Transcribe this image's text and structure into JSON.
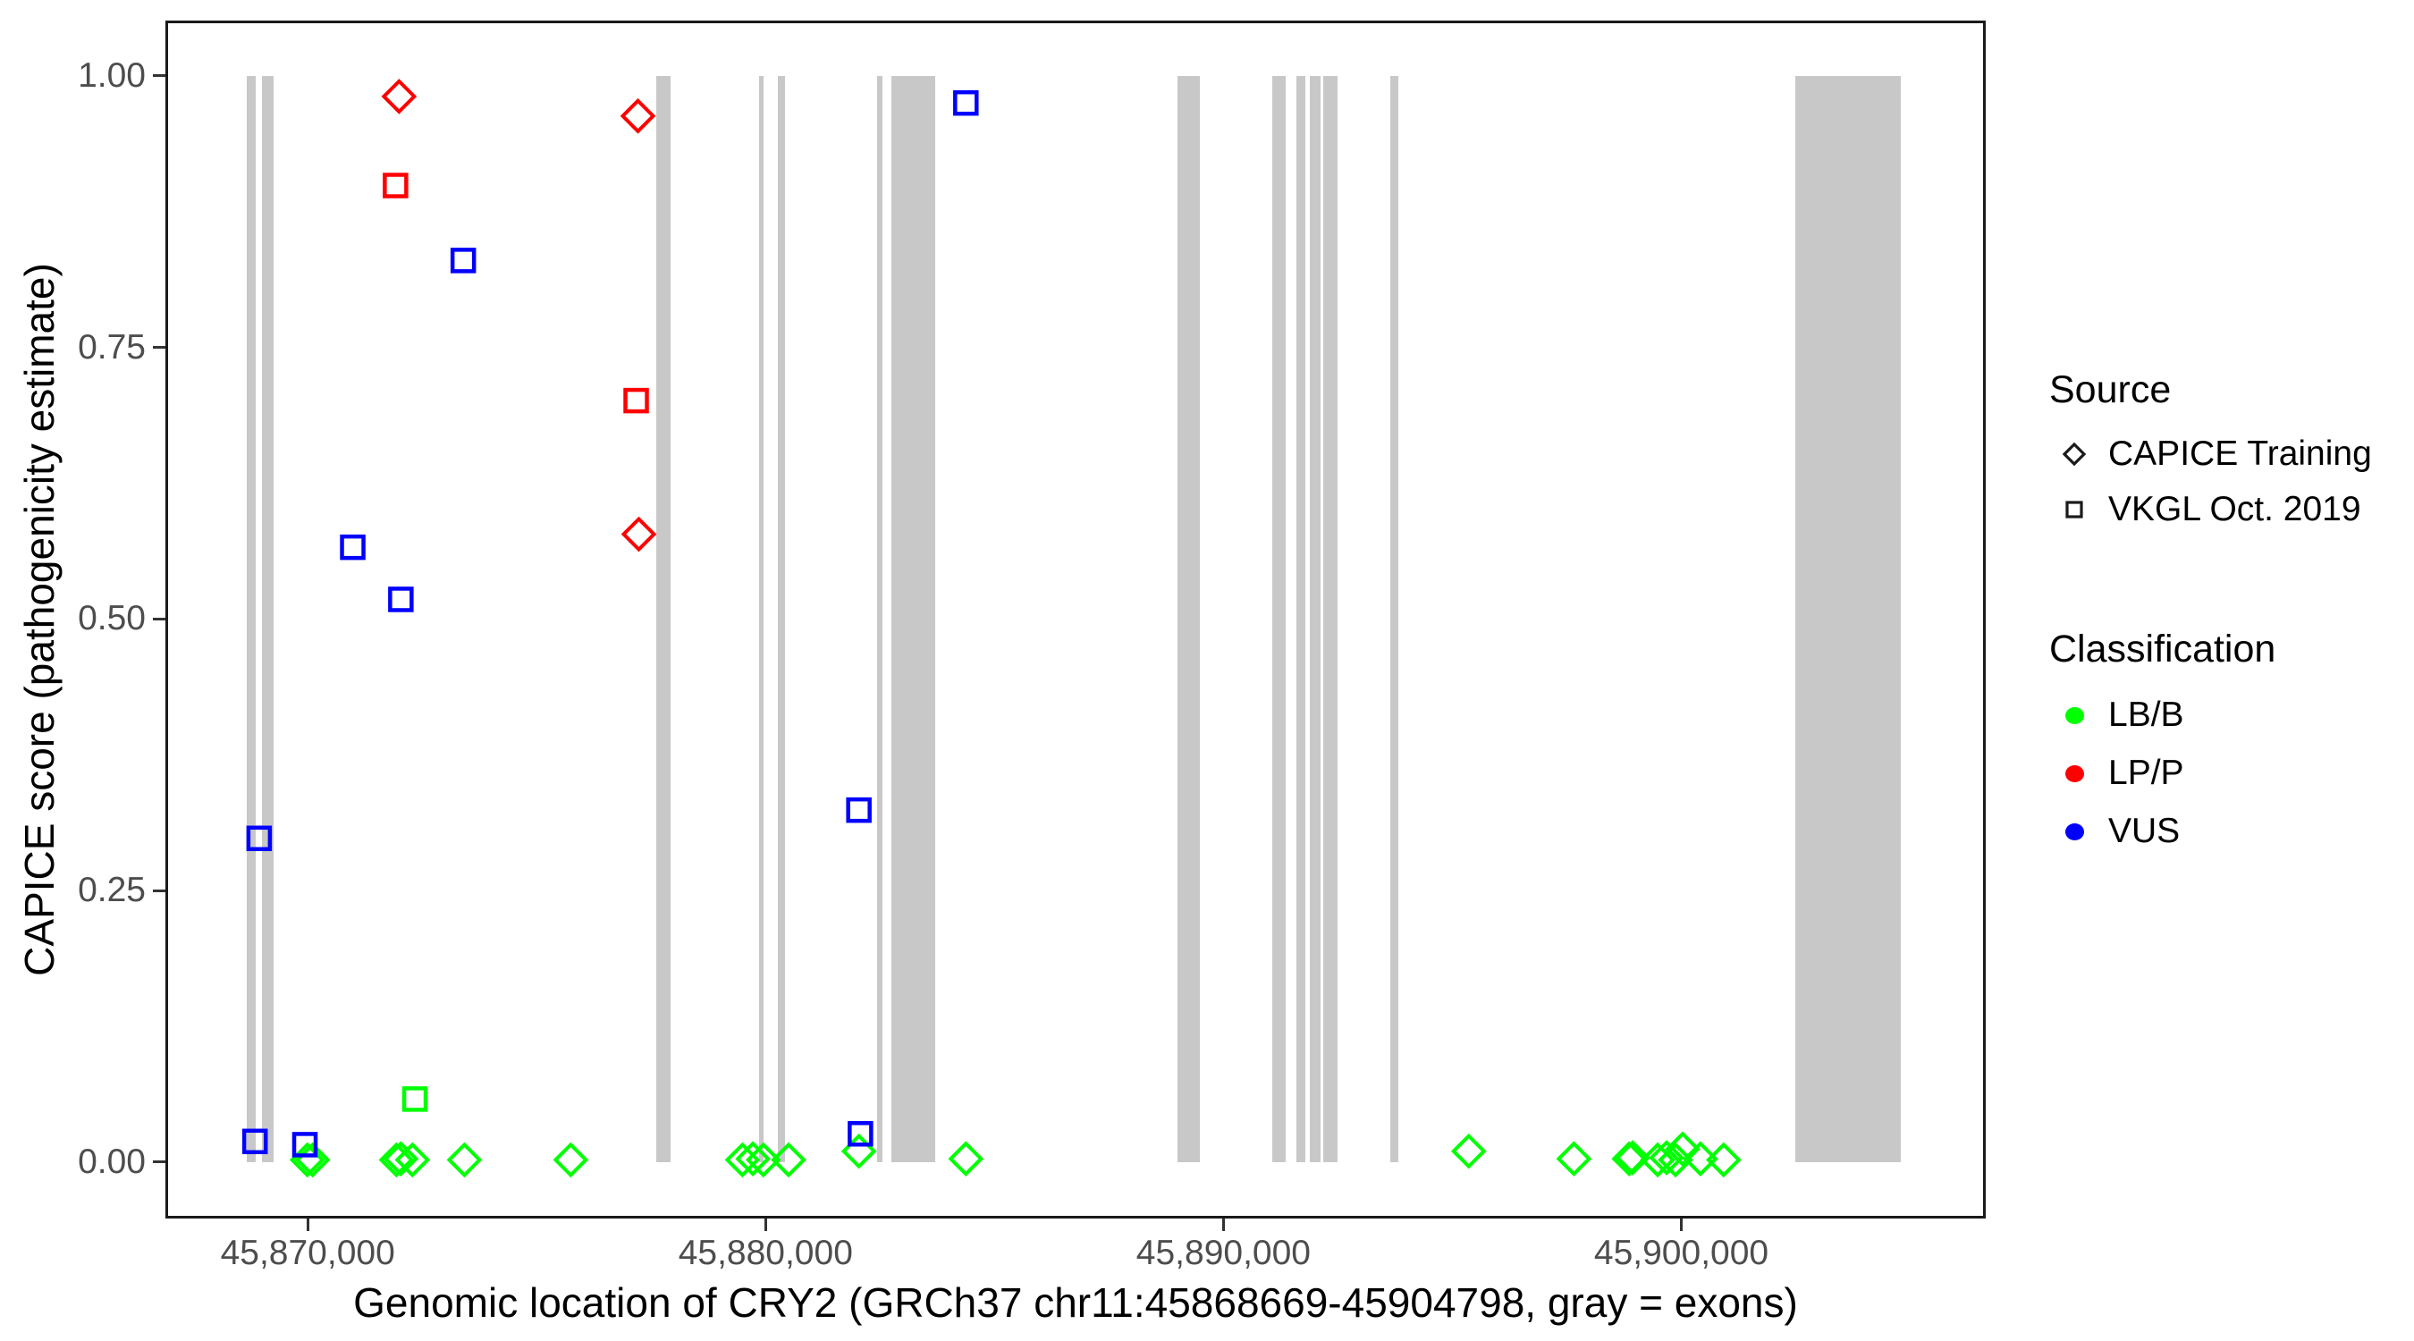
{
  "figure": {
    "background": "#ffffff",
    "panel_border_color": "#1a1a1a",
    "tick_label_color": "#4d4d4d"
  },
  "chart_data": {
    "type": "scatter",
    "title": "",
    "xlabel": "Genomic location of CRY2 (GRCh37 chr11:45868669-45904798, gray = exons)",
    "ylabel": "CAPICE score (pathogenicity estimate)",
    "x_domain": [
      45866950,
      45906590
    ],
    "y_domain": [
      -0.0495,
      1.0484
    ],
    "ylim": [
      0,
      1
    ],
    "gene_region": "chr11:45868669-45904798",
    "grid": "off",
    "x_ticks": [
      {
        "value": 45870000,
        "label": "45,870,000"
      },
      {
        "value": 45880000,
        "label": "45,880,000"
      },
      {
        "value": 45890000,
        "label": "45,890,000"
      },
      {
        "value": 45900000,
        "label": "45,900,000"
      }
    ],
    "y_ticks": [
      {
        "value": 0.0,
        "label": "0.00"
      },
      {
        "value": 0.25,
        "label": "0.25"
      },
      {
        "value": 0.5,
        "label": "0.50"
      },
      {
        "value": 0.75,
        "label": "0.75"
      },
      {
        "value": 1.0,
        "label": "1.00"
      }
    ],
    "exon_color": "#c8c8c8",
    "exons": [
      [
        45868669,
        45868861
      ],
      [
        45868998,
        45869251
      ],
      [
        45877620,
        45877932
      ],
      [
        45879859,
        45879956
      ],
      [
        45880268,
        45880424
      ],
      [
        45882428,
        45882545
      ],
      [
        45882740,
        45883713
      ],
      [
        45888988,
        45889494
      ],
      [
        45891071,
        45891363
      ],
      [
        45891597,
        45891791
      ],
      [
        45891889,
        45892122
      ],
      [
        45892181,
        45892492
      ],
      [
        45893641,
        45893816
      ],
      [
        45902493,
        45904798
      ]
    ],
    "class_colors": {
      "LB/B": "#00ff00",
      "LP/P": "#ff0000",
      "VUS": "#0000ff"
    },
    "series": [
      {
        "name": "CAPICE Training",
        "marker": "diamond",
        "points": [
          {
            "x": 45869990,
            "y": 0.002,
            "c": "LB/B"
          },
          {
            "x": 45870107,
            "y": 0.002,
            "c": "LB/B"
          },
          {
            "x": 45871937,
            "y": 0.002,
            "c": "LB/B"
          },
          {
            "x": 45871995,
            "y": 0.981,
            "c": "LP/P"
          },
          {
            "x": 45872034,
            "y": 0.003,
            "c": "LB/B"
          },
          {
            "x": 45872287,
            "y": 0.002,
            "c": "LB/B"
          },
          {
            "x": 45873422,
            "y": 0.002,
            "c": "LB/B"
          },
          {
            "x": 45875744,
            "y": 0.002,
            "c": "LB/B"
          },
          {
            "x": 45877212,
            "y": 0.963,
            "c": "LP/P"
          },
          {
            "x": 45877231,
            "y": 0.578,
            "c": "LP/P"
          },
          {
            "x": 45879495,
            "y": 0.002,
            "c": "LB/B"
          },
          {
            "x": 45879723,
            "y": 0.003,
            "c": "LB/B"
          },
          {
            "x": 45879951,
            "y": 0.002,
            "c": "LB/B"
          },
          {
            "x": 45880502,
            "y": 0.002,
            "c": "LB/B"
          },
          {
            "x": 45882038,
            "y": 0.01,
            "c": "LB/B"
          },
          {
            "x": 45884374,
            "y": 0.003,
            "c": "LB/B"
          },
          {
            "x": 45895357,
            "y": 0.01,
            "c": "LB/B"
          },
          {
            "x": 45897654,
            "y": 0.003,
            "c": "LB/B"
          },
          {
            "x": 45898861,
            "y": 0.003,
            "c": "LB/B"
          },
          {
            "x": 45898939,
            "y": 0.004,
            "c": "LB/B"
          },
          {
            "x": 45899484,
            "y": 0.002,
            "c": "LB/B"
          },
          {
            "x": 45899679,
            "y": 0.004,
            "c": "LB/B"
          },
          {
            "x": 45899873,
            "y": 0.002,
            "c": "LB/B"
          },
          {
            "x": 45900029,
            "y": 0.012,
            "c": "LB/B"
          },
          {
            "x": 45900418,
            "y": 0.003,
            "c": "LB/B"
          },
          {
            "x": 45900924,
            "y": 0.002,
            "c": "LB/B"
          }
        ]
      },
      {
        "name": "VKGL Oct. 2019",
        "marker": "square",
        "points": [
          {
            "x": 45868848,
            "y": 0.019,
            "c": "VUS"
          },
          {
            "x": 45868939,
            "y": 0.298,
            "c": "VUS"
          },
          {
            "x": 45869938,
            "y": 0.016,
            "c": "VUS"
          },
          {
            "x": 45870983,
            "y": 0.566,
            "c": "VUS"
          },
          {
            "x": 45871917,
            "y": 0.899,
            "c": "LP/P"
          },
          {
            "x": 45872034,
            "y": 0.518,
            "c": "VUS"
          },
          {
            "x": 45872340,
            "y": 0.058,
            "c": "LB/B"
          },
          {
            "x": 45873397,
            "y": 0.83,
            "c": "VUS"
          },
          {
            "x": 45877173,
            "y": 0.701,
            "c": "LP/P"
          },
          {
            "x": 45882038,
            "y": 0.324,
            "c": "VUS"
          },
          {
            "x": 45882071,
            "y": 0.026,
            "c": "VUS"
          },
          {
            "x": 45884374,
            "y": 0.975,
            "c": "VUS"
          }
        ]
      }
    ]
  },
  "legend": {
    "source": {
      "title": "Source",
      "items": [
        {
          "label": "CAPICE Training",
          "marker": "diamond"
        },
        {
          "label": "VKGL Oct. 2019",
          "marker": "square"
        }
      ]
    },
    "classification": {
      "title": "Classification",
      "items": [
        {
          "label": "LB/B",
          "color": "#00ff00"
        },
        {
          "label": "LP/P",
          "color": "#ff0000"
        },
        {
          "label": "VUS",
          "color": "#0000ff"
        }
      ]
    }
  }
}
